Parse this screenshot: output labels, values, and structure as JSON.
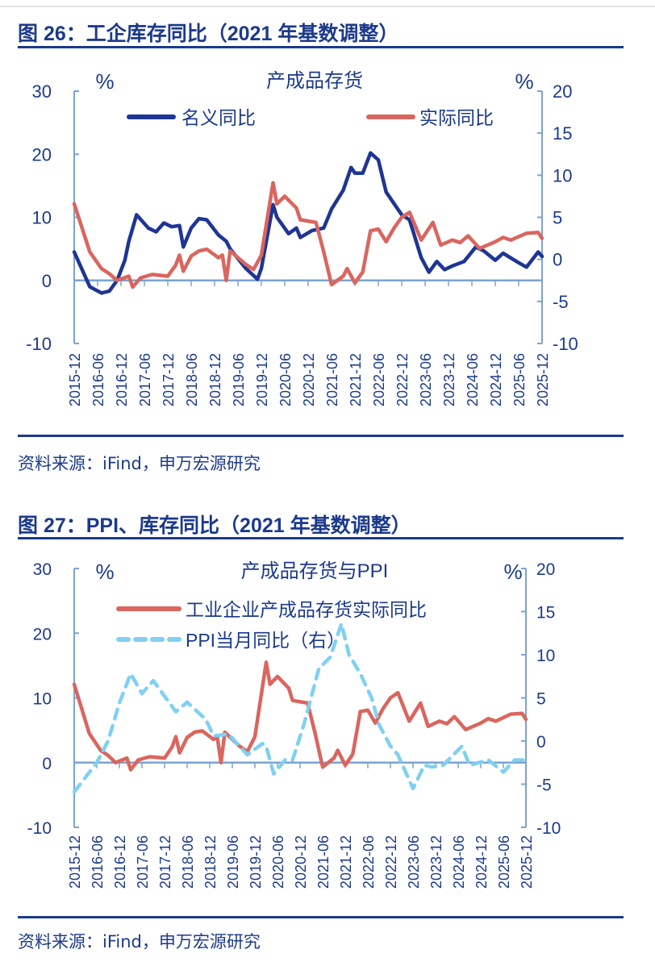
{
  "figure26": {
    "title": "图 26：工企库存同比（2021 年基数调整）",
    "source": "资料来源：iFind，申万宏源研究"
  },
  "figure27": {
    "title": "图 27：PPI、库存同比（2021 年基数调整）",
    "source": "资料来源：iFind，申万宏源研究"
  },
  "colors": {
    "title": "#1c3a8c",
    "axis": "#7ba3d0",
    "nominal": "#1f3594",
    "real": "#d9665f",
    "ppi": "#80d0f2"
  },
  "chart_data": [
    {
      "type": "line",
      "title": "产成品存货",
      "left_unit": "%",
      "right_unit": "%",
      "ylim_left": [
        -10,
        30
      ],
      "yticks_left": [
        "30",
        "20",
        "10",
        "0",
        "-10"
      ],
      "ylim_right": [
        -10,
        20
      ],
      "yticks_right": [
        "20",
        "15",
        "10",
        "5",
        "0",
        "-5",
        "-10"
      ],
      "xlim": [
        "2015-12",
        "2025-12"
      ],
      "xticks": [
        "2015-12",
        "2016-06",
        "2016-12",
        "2017-06",
        "2017-12",
        "2018-06",
        "2018-12",
        "2019-06",
        "2019-12",
        "2020-06",
        "2020-12",
        "2021-06",
        "2021-12",
        "2022-06",
        "2022-12",
        "2023-06",
        "2023-12",
        "2024-06",
        "2024-12",
        "2025-06",
        "2025-12"
      ],
      "grid": false,
      "legend": "top",
      "series": [
        {
          "name": "名义同比",
          "axis": "left",
          "style": "solid",
          "color": "#1f3594",
          "points": [
            [
              "2015-12",
              4.5
            ],
            [
              "2016-04",
              -1
            ],
            [
              "2016-07",
              -2
            ],
            [
              "2016-09",
              -1.7
            ],
            [
              "2016-11",
              0
            ],
            [
              "2017-01",
              3.2
            ],
            [
              "2017-02",
              6.2
            ],
            [
              "2017-04",
              10.4
            ],
            [
              "2017-07",
              8.3
            ],
            [
              "2017-09",
              7.7
            ],
            [
              "2017-11",
              9.1
            ],
            [
              "2018-01",
              8.5
            ],
            [
              "2018-03",
              8.7
            ],
            [
              "2018-04",
              5.3
            ],
            [
              "2018-06",
              8.3
            ],
            [
              "2018-08",
              9.8
            ],
            [
              "2018-10",
              9.6
            ],
            [
              "2019-01",
              7.2
            ],
            [
              "2019-03",
              6.2
            ],
            [
              "2019-04",
              5.0
            ],
            [
              "2019-08",
              1.9
            ],
            [
              "2019-11",
              0.2
            ],
            [
              "2019-12",
              1.9
            ],
            [
              "2020-03",
              12
            ],
            [
              "2020-04",
              10
            ],
            [
              "2020-07",
              7.4
            ],
            [
              "2020-09",
              8.3
            ],
            [
              "2020-10",
              6.8
            ],
            [
              "2021-01",
              7.9
            ],
            [
              "2021-04",
              8.3
            ],
            [
              "2021-06",
              11.3
            ],
            [
              "2021-09",
              14.3
            ],
            [
              "2021-11",
              17.9
            ],
            [
              "2021-12",
              17.0
            ],
            [
              "2022-02",
              17.0
            ],
            [
              "2022-04",
              20.2
            ],
            [
              "2022-06",
              19.1
            ],
            [
              "2022-08",
              14.0
            ],
            [
              "2022-12",
              10.4
            ],
            [
              "2023-02",
              9.6
            ],
            [
              "2023-05",
              3.6
            ],
            [
              "2023-07",
              1.3
            ],
            [
              "2023-09",
              3.0
            ],
            [
              "2023-11",
              1.7
            ],
            [
              "2024-01",
              2.3
            ],
            [
              "2024-04",
              3.0
            ],
            [
              "2024-07",
              5.3
            ],
            [
              "2024-09",
              4.7
            ],
            [
              "2024-12",
              3.2
            ],
            [
              "2025-02",
              4.3
            ],
            [
              "2025-06",
              2.8
            ],
            [
              "2025-08",
              2.1
            ],
            [
              "2025-11",
              4.5
            ],
            [
              "2025-12",
              3.8
            ]
          ]
        },
        {
          "name": "实际同比",
          "axis": "right",
          "style": "solid",
          "color": "#d9665f",
          "points": [
            [
              "2015-12",
              6.6
            ],
            [
              "2016-04",
              0.9
            ],
            [
              "2016-07",
              -1.1
            ],
            [
              "2016-09",
              -1.7
            ],
            [
              "2016-11",
              -2.5
            ],
            [
              "2017-02",
              -2.0
            ],
            [
              "2017-03",
              -3.3
            ],
            [
              "2017-05",
              -2.2
            ],
            [
              "2017-08",
              -1.8
            ],
            [
              "2017-12",
              -2.0
            ],
            [
              "2018-02",
              -0.7
            ],
            [
              "2018-03",
              0.5
            ],
            [
              "2018-04",
              -1.4
            ],
            [
              "2018-06",
              0.4
            ],
            [
              "2018-08",
              1.0
            ],
            [
              "2018-10",
              1.2
            ],
            [
              "2019-01",
              0.2
            ],
            [
              "2019-02",
              0.5
            ],
            [
              "2019-03",
              -2.5
            ],
            [
              "2019-04",
              1.0
            ],
            [
              "2019-08",
              -0.6
            ],
            [
              "2019-10",
              -1.2
            ],
            [
              "2019-12",
              0.5
            ],
            [
              "2020-03",
              9.1
            ],
            [
              "2020-04",
              6.6
            ],
            [
              "2020-06",
              7.5
            ],
            [
              "2020-09",
              6.1
            ],
            [
              "2020-10",
              4.7
            ],
            [
              "2021-02",
              4.4
            ],
            [
              "2021-04",
              0.9
            ],
            [
              "2021-06",
              -3.0
            ],
            [
              "2021-09",
              -2.0
            ],
            [
              "2021-10",
              -1.1
            ],
            [
              "2021-12",
              -2.8
            ],
            [
              "2022-02",
              -1.5
            ],
            [
              "2022-04",
              3.4
            ],
            [
              "2022-06",
              3.6
            ],
            [
              "2022-08",
              2.1
            ],
            [
              "2022-10",
              3.7
            ],
            [
              "2022-12",
              5.0
            ],
            [
              "2023-02",
              5.6
            ],
            [
              "2023-05",
              2.3
            ],
            [
              "2023-08",
              4.4
            ],
            [
              "2023-10",
              1.7
            ],
            [
              "2024-01",
              2.3
            ],
            [
              "2024-03",
              2.0
            ],
            [
              "2024-05",
              2.8
            ],
            [
              "2024-08",
              1.3
            ],
            [
              "2024-12",
              2.1
            ],
            [
              "2025-02",
              2.6
            ],
            [
              "2025-04",
              2.3
            ],
            [
              "2025-08",
              3.1
            ],
            [
              "2025-11",
              3.2
            ],
            [
              "2025-12",
              2.5
            ]
          ]
        }
      ]
    },
    {
      "type": "line",
      "title": "产成品存货与PPI",
      "left_unit": "%",
      "right_unit": "%",
      "ylim_left": [
        -10,
        30
      ],
      "yticks_left": [
        "30",
        "20",
        "10",
        "0",
        "-10"
      ],
      "ylim_right": [
        -10,
        20
      ],
      "yticks_right": [
        "20",
        "15",
        "10",
        "5",
        "0",
        "-5",
        "-10"
      ],
      "xlim": [
        "2015-12",
        "2025-12"
      ],
      "xticks": [
        "2015-12",
        "2016-06",
        "2016-12",
        "2017-06",
        "2017-12",
        "2018-06",
        "2018-12",
        "2019-06",
        "2019-12",
        "2020-06",
        "2020-12",
        "2021-06",
        "2021-12",
        "2022-06",
        "2022-12",
        "2023-06",
        "2023-12",
        "2024-06",
        "2024-12",
        "2025-06",
        "2025-12"
      ],
      "grid": false,
      "legend": "top-left",
      "series": [
        {
          "name": "工业企业产成品存货实际同比",
          "axis": "left",
          "style": "solid",
          "color": "#d9665f",
          "points": [
            [
              "2015-12",
              12.1
            ],
            [
              "2016-04",
              4.5
            ],
            [
              "2016-07",
              1.9
            ],
            [
              "2016-09",
              1.1
            ],
            [
              "2016-11",
              0
            ],
            [
              "2017-02",
              0.7
            ],
            [
              "2017-03",
              -1.1
            ],
            [
              "2017-05",
              0.4
            ],
            [
              "2017-08",
              0.9
            ],
            [
              "2017-12",
              0.7
            ],
            [
              "2018-02",
              2.4
            ],
            [
              "2018-03",
              4.0
            ],
            [
              "2018-04",
              1.5
            ],
            [
              "2018-06",
              3.9
            ],
            [
              "2018-08",
              4.7
            ],
            [
              "2018-10",
              4.9
            ],
            [
              "2019-01",
              3.6
            ],
            [
              "2019-02",
              4.0
            ],
            [
              "2019-03",
              0
            ],
            [
              "2019-04",
              4.7
            ],
            [
              "2019-08",
              2.5
            ],
            [
              "2019-10",
              1.7
            ],
            [
              "2019-12",
              4.0
            ],
            [
              "2020-03",
              15.5
            ],
            [
              "2020-04",
              12.1
            ],
            [
              "2020-06",
              13.3
            ],
            [
              "2020-09",
              11.5
            ],
            [
              "2020-10",
              9.6
            ],
            [
              "2021-02",
              9.2
            ],
            [
              "2021-04",
              4.5
            ],
            [
              "2021-06",
              -0.7
            ],
            [
              "2021-09",
              0.7
            ],
            [
              "2021-10",
              1.9
            ],
            [
              "2021-12",
              -0.4
            ],
            [
              "2022-02",
              1.3
            ],
            [
              "2022-04",
              7.9
            ],
            [
              "2022-06",
              8.1
            ],
            [
              "2022-08",
              6.1
            ],
            [
              "2022-10",
              8.3
            ],
            [
              "2022-12",
              10.0
            ],
            [
              "2023-02",
              10.8
            ],
            [
              "2023-05",
              6.4
            ],
            [
              "2023-08",
              9.2
            ],
            [
              "2023-10",
              5.6
            ],
            [
              "2024-01",
              6.4
            ],
            [
              "2024-03",
              6.0
            ],
            [
              "2024-05",
              7.1
            ],
            [
              "2024-08",
              5.1
            ],
            [
              "2024-12",
              6.1
            ],
            [
              "2025-02",
              6.8
            ],
            [
              "2025-04",
              6.4
            ],
            [
              "2025-08",
              7.5
            ],
            [
              "2025-11",
              7.6
            ],
            [
              "2025-12",
              6.7
            ]
          ]
        },
        {
          "name": "PPI当月同比（右）",
          "axis": "right",
          "style": "dashed",
          "color": "#80d0f2",
          "points": [
            [
              "2015-12",
              -5.9
            ],
            [
              "2016-06",
              -2.5
            ],
            [
              "2016-09",
              0
            ],
            [
              "2016-12",
              4.4
            ],
            [
              "2017-03",
              7.8
            ],
            [
              "2017-06",
              5.5
            ],
            [
              "2017-09",
              7.0
            ],
            [
              "2018-03",
              3.4
            ],
            [
              "2018-06",
              4.5
            ],
            [
              "2018-11",
              2.5
            ],
            [
              "2019-01",
              0.6
            ],
            [
              "2019-05",
              0.8
            ],
            [
              "2019-10",
              -1.6
            ],
            [
              "2020-02",
              -0.3
            ],
            [
              "2020-03",
              -0.6
            ],
            [
              "2020-05",
              -3.8
            ],
            [
              "2020-08",
              -2.2
            ],
            [
              "2020-10",
              -2.2
            ],
            [
              "2021-01",
              1.9
            ],
            [
              "2021-05",
              8.4
            ],
            [
              "2021-08",
              9.7
            ],
            [
              "2021-11",
              13.6
            ],
            [
              "2022-01",
              10.0
            ],
            [
              "2022-04",
              7.8
            ],
            [
              "2022-07",
              5.0
            ],
            [
              "2022-09",
              1.9
            ],
            [
              "2022-12",
              -0.6
            ],
            [
              "2023-02",
              -1.6
            ],
            [
              "2023-06",
              -5.5
            ],
            [
              "2023-09",
              -2.8
            ],
            [
              "2023-11",
              -3.0
            ],
            [
              "2024-02",
              -2.8
            ],
            [
              "2024-07",
              -0.6
            ],
            [
              "2024-09",
              -2.8
            ],
            [
              "2025-02",
              -2.2
            ],
            [
              "2025-06",
              -3.6
            ],
            [
              "2025-09",
              -2.2
            ],
            [
              "2025-12",
              -2.2
            ]
          ]
        }
      ]
    }
  ]
}
